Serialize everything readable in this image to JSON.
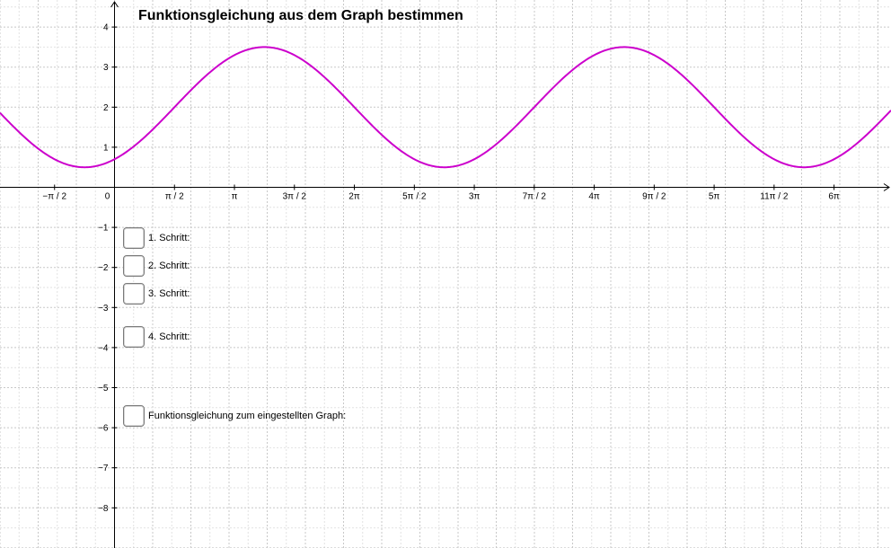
{
  "title": "Funktionsgleichung aus dem Graph bestimmen",
  "axes": {
    "x_labels": [
      "−π / 2",
      "0",
      "π / 2",
      "π",
      "3π / 2",
      "2π",
      "5π / 2",
      "3π",
      "7π / 2",
      "4π",
      "9π / 2",
      "5π",
      "11π / 2",
      "6π"
    ],
    "x_multiples_of_half_pi": [
      -1,
      0,
      1,
      2,
      3,
      4,
      5,
      6,
      7,
      8,
      9,
      10,
      11,
      12
    ],
    "y_labels": [
      "4",
      "3",
      "2",
      "1",
      "−1",
      "−2",
      "−3",
      "−4",
      "−5",
      "−6",
      "−7",
      "−8"
    ],
    "y_values": [
      4,
      3,
      2,
      1,
      -1,
      -2,
      -3,
      -4,
      -5,
      -6,
      -7,
      -8
    ]
  },
  "function_graph": {
    "color": "#cc00cc",
    "maximum": 3.5,
    "minimum": 0.5,
    "period_in_multiples_of_pi": 3,
    "maximum_at_multiple_of_pi": 1.25
  },
  "steps": [
    {
      "label": "1. Schritt:",
      "checked": false
    },
    {
      "label": "2. Schritt:",
      "checked": false
    },
    {
      "label": "3. Schritt:",
      "checked": false
    },
    {
      "label": "4. Schritt:",
      "checked": false
    }
  ],
  "result": {
    "label": "Funktionsgleichung zum eingestellten Graph:",
    "checked": false
  }
}
